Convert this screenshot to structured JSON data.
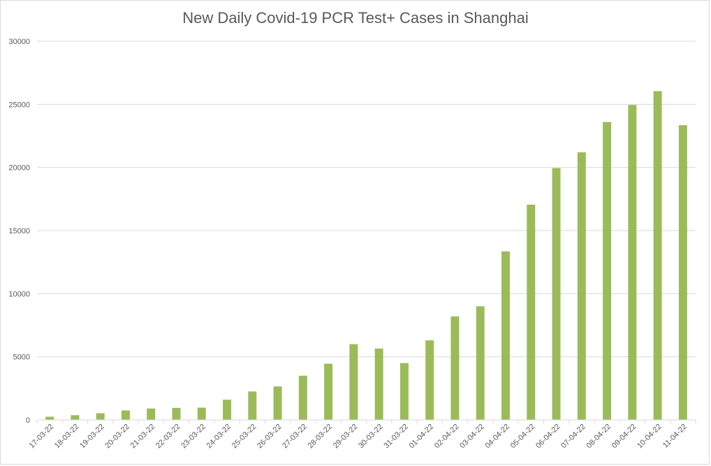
{
  "chart_data": {
    "type": "bar",
    "title": "New Daily Covid-19 PCR Test+ Cases in Shanghai",
    "xlabel": "",
    "ylabel": "",
    "ylim": [
      0,
      30000
    ],
    "yticks": [
      0,
      5000,
      10000,
      15000,
      20000,
      25000,
      30000
    ],
    "grid": true,
    "legend": "none",
    "bar_color": "#9bbb59",
    "categories": [
      "17-03-22",
      "18-03-22",
      "19-03-22",
      "20-03-22",
      "21-03-22",
      "22-03-22",
      "23-03-22",
      "24-03-22",
      "25-03-22",
      "26-03-22",
      "27-03-22",
      "28-03-22",
      "29-03-22",
      "30-03-22",
      "31-03-22",
      "01-04-22",
      "02-04-22",
      "03-04-22",
      "04-04-22",
      "05-04-22",
      "06-04-22",
      "07-04-22",
      "08-04-22",
      "09-04-22",
      "10-04-22",
      "11-04-22"
    ],
    "values": [
      250,
      370,
      530,
      750,
      900,
      950,
      970,
      1600,
      2250,
      2650,
      3500,
      4450,
      6000,
      5650,
      4500,
      6300,
      8200,
      9000,
      13350,
      17050,
      19950,
      21200,
      23600,
      24950,
      26050,
      23350
    ]
  }
}
